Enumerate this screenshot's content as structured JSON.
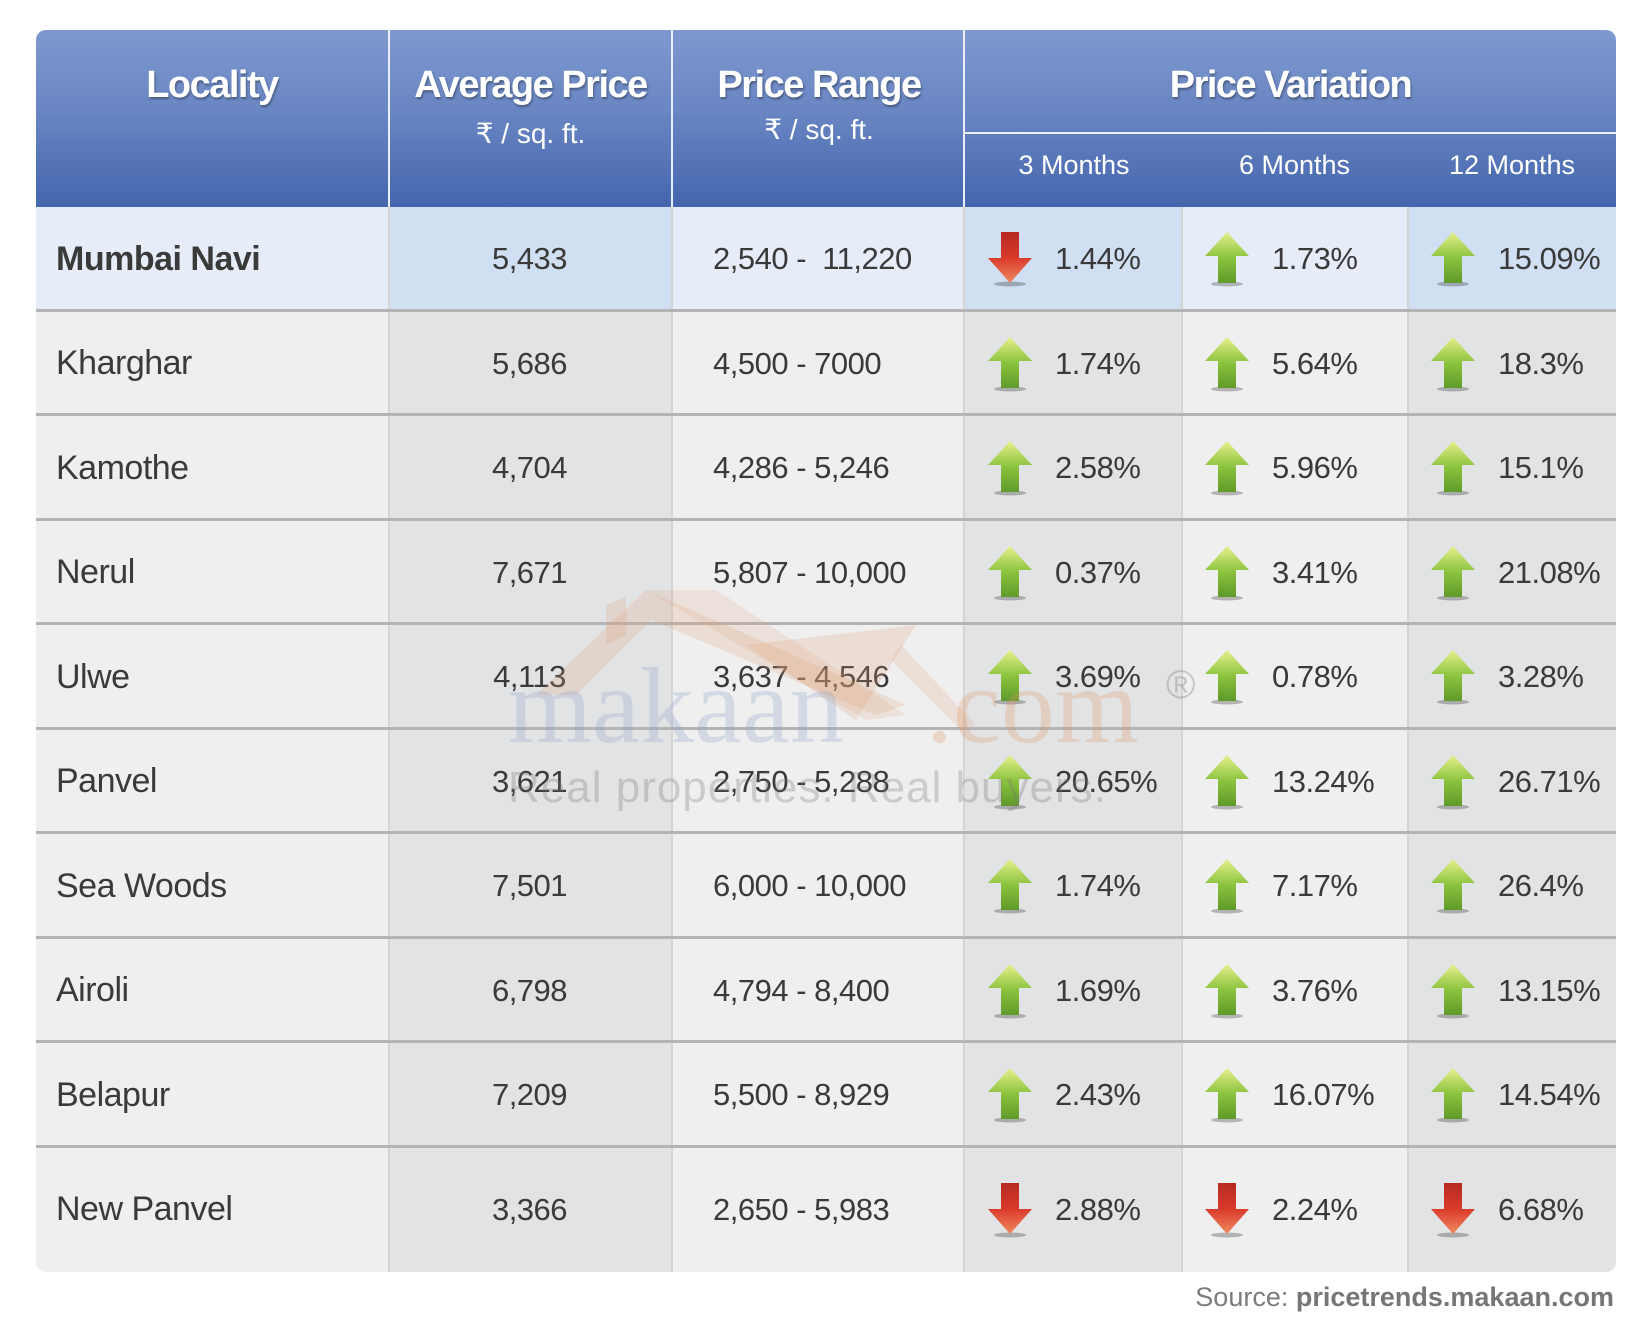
{
  "header": {
    "locality": "Locality",
    "average_price": "Average Price",
    "average_price_unit": "₹ / sq. ft.",
    "price_range": "Price Range",
    "price_range_unit": "₹ / sq. ft.",
    "price_variation": "Price Variation",
    "months": [
      "3 Months",
      "6 Months",
      "12 Months"
    ]
  },
  "rows": [
    {
      "locality": "Mumbai Navi",
      "average": "5,433",
      "range": "2,540 -  11,220",
      "variation": [
        {
          "value": "1.44%",
          "trend": "down"
        },
        {
          "value": "1.73%",
          "trend": "up"
        },
        {
          "value": "15.09%",
          "trend": "up"
        }
      ]
    },
    {
      "locality": "Kharghar",
      "average": "5,686",
      "range": "4,500 - 7000",
      "variation": [
        {
          "value": "1.74%",
          "trend": "up"
        },
        {
          "value": "5.64%",
          "trend": "up"
        },
        {
          "value": "18.3%",
          "trend": "up"
        }
      ]
    },
    {
      "locality": "Kamothe",
      "average": "4,704",
      "range": "4,286 - 5,246",
      "variation": [
        {
          "value": "2.58%",
          "trend": "up"
        },
        {
          "value": "5.96%",
          "trend": "up"
        },
        {
          "value": "15.1%",
          "trend": "up"
        }
      ]
    },
    {
      "locality": "Nerul",
      "average": "7,671",
      "range": "5,807 - 10,000",
      "variation": [
        {
          "value": "0.37%",
          "trend": "up"
        },
        {
          "value": "3.41%",
          "trend": "up"
        },
        {
          "value": "21.08%",
          "trend": "up"
        }
      ]
    },
    {
      "locality": "Ulwe",
      "average": "4,113",
      "range": "3,637 - 4,546",
      "variation": [
        {
          "value": "3.69%",
          "trend": "up"
        },
        {
          "value": "0.78%",
          "trend": "up"
        },
        {
          "value": "3.28%",
          "trend": "up"
        }
      ]
    },
    {
      "locality": "Panvel",
      "average": "3,621",
      "range": "2,750 - 5,288",
      "variation": [
        {
          "value": "20.65%",
          "trend": "up"
        },
        {
          "value": "13.24%",
          "trend": "up"
        },
        {
          "value": "26.71%",
          "trend": "up"
        }
      ]
    },
    {
      "locality": "Sea Woods",
      "average": "7,501",
      "range": "6,000 - 10,000",
      "variation": [
        {
          "value": "1.74%",
          "trend": "up"
        },
        {
          "value": "7.17%",
          "trend": "up"
        },
        {
          "value": "26.4%",
          "trend": "up"
        }
      ]
    },
    {
      "locality": "Airoli",
      "average": "6,798",
      "range": "4,794 - 8,400",
      "variation": [
        {
          "value": "1.69%",
          "trend": "up"
        },
        {
          "value": "3.76%",
          "trend": "up"
        },
        {
          "value": "13.15%",
          "trend": "up"
        }
      ]
    },
    {
      "locality": "Belapur",
      "average": "7,209",
      "range": "5,500 - 8,929",
      "variation": [
        {
          "value": "2.43%",
          "trend": "up"
        },
        {
          "value": "16.07%",
          "trend": "up"
        },
        {
          "value": "14.54%",
          "trend": "up"
        }
      ]
    },
    {
      "locality": "New Panvel",
      "average": "3,366",
      "range": "2,650 - 5,983",
      "variation": [
        {
          "value": "2.88%",
          "trend": "down"
        },
        {
          "value": "2.24%",
          "trend": "down"
        },
        {
          "value": "6.68%",
          "trend": "down"
        }
      ]
    }
  ],
  "watermark": {
    "brand": "makaan",
    "domain": ".com",
    "registered": "®",
    "tagline": "Real properties. Real buyers."
  },
  "source": {
    "label": "Source: ",
    "site": "pricetrends.makaan.com"
  },
  "colors": {
    "header_top": "#7e99cf",
    "header_bottom": "#4466ad",
    "up_arrow": "#7fb83a",
    "down_arrow": "#d9392a",
    "text": "#3a3a3a"
  }
}
